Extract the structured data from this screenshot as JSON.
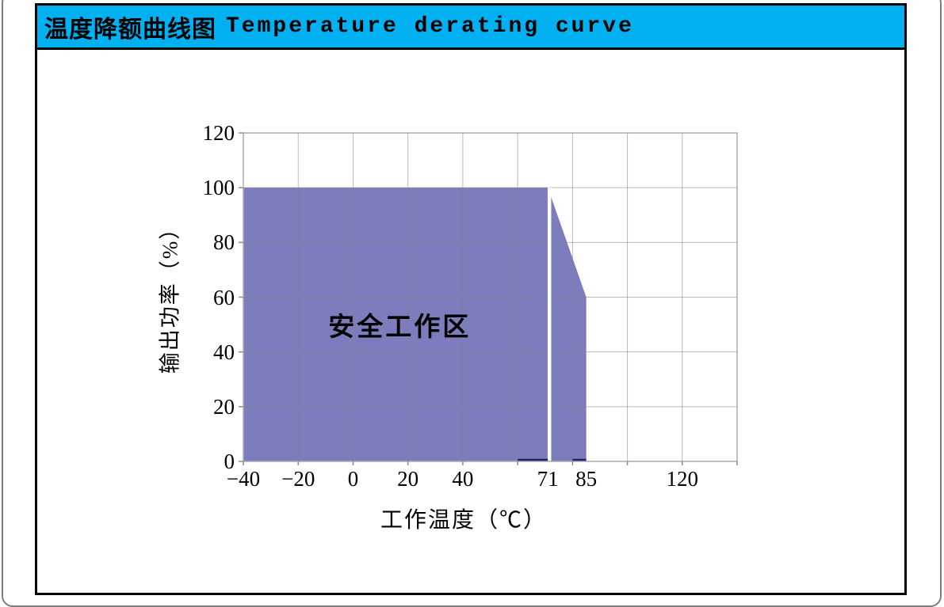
{
  "window": {
    "frame_border_color": "#7d7d7d",
    "panel_border_color": "#000000",
    "background": "#ffffff"
  },
  "header": {
    "title_zh": "温度降额曲线图",
    "title_en": "Temperature derating curve",
    "background": "#00B0F0",
    "text_color": "#000000"
  },
  "chart_data": {
    "type": "area",
    "title": "",
    "xlabel": "工作温度（℃）",
    "ylabel": "输出功率（%）",
    "xlim": [
      -40,
      140
    ],
    "ylim": [
      0,
      120
    ],
    "x_gridline_step": 20,
    "y_gridline_step": 20,
    "grid_on": true,
    "x_ticks": [
      {
        "value": -40,
        "label": "−40"
      },
      {
        "value": -20,
        "label": "−20"
      },
      {
        "value": 0,
        "label": "0"
      },
      {
        "value": 20,
        "label": "20"
      },
      {
        "value": 40,
        "label": "40"
      },
      {
        "value": 71,
        "label": "71"
      },
      {
        "value": 85,
        "label": "85"
      },
      {
        "value": 120,
        "label": "120"
      }
    ],
    "y_ticks": [
      {
        "value": 0,
        "label": "0"
      },
      {
        "value": 20,
        "label": "20"
      },
      {
        "value": 40,
        "label": "40"
      },
      {
        "value": 60,
        "label": "60"
      },
      {
        "value": 80,
        "label": "80"
      },
      {
        "value": 100,
        "label": "100"
      },
      {
        "value": 120,
        "label": "120"
      }
    ],
    "series": [
      {
        "name": "安全工作区",
        "type": "area",
        "color": "#7D7DBE",
        "points": [
          [
            -40,
            100
          ],
          [
            71,
            100
          ],
          [
            85,
            60
          ],
          [
            85,
            0
          ]
        ]
      }
    ],
    "region_label": {
      "text": "安全工作区",
      "x": 17,
      "y": 50
    },
    "separator_line": {
      "x": 71,
      "color": "#FFFFFF",
      "width": 4.5
    },
    "baseline_segments": [
      {
        "x1": 60,
        "x2": 71
      },
      {
        "x1": 80,
        "x2": 85
      }
    ],
    "baseline_color": "#23236B",
    "grid_color": "#7F7F7F",
    "plot_border_color": "#ABABAB",
    "tick_color": "#8C8C8C"
  }
}
